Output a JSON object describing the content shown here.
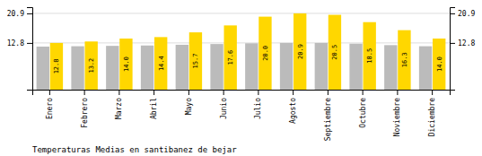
{
  "chart_data": {
    "type": "bar",
    "title": "Temperaturas Medias en santibanez de bejar",
    "categories": [
      "Enero",
      "Febrero",
      "Marzo",
      "Abril",
      "Mayo",
      "Junio",
      "Julio",
      "Agosto",
      "Septiembre",
      "Octubre",
      "Noviembre",
      "Diciembre"
    ],
    "series": [
      {
        "color": "#BBBBBB",
        "values": [
          11.8,
          11.9,
          12.0,
          12.1,
          12.3,
          12.5,
          12.7,
          12.8,
          12.8,
          12.6,
          12.2,
          11.9
        ]
      },
      {
        "color": "#FFD700",
        "values": [
          12.8,
          13.2,
          14.0,
          14.4,
          15.7,
          17.6,
          20.0,
          20.9,
          20.5,
          18.5,
          16.3,
          14.0
        ],
        "value_labels": [
          "12.8",
          "13.2",
          "14.0",
          "14.4",
          "15.7",
          "17.6",
          "20.0",
          "20.9",
          "20.5",
          "18.5",
          "16.3",
          "14.0"
        ],
        "data_labels": true
      }
    ],
    "ylim": [
      0,
      22.6
    ],
    "yticks": [
      12.8,
      20.9
    ],
    "y2lim": [
      0,
      22.6
    ],
    "y2ticks": [
      12.8,
      20.9
    ],
    "grid": true
  }
}
